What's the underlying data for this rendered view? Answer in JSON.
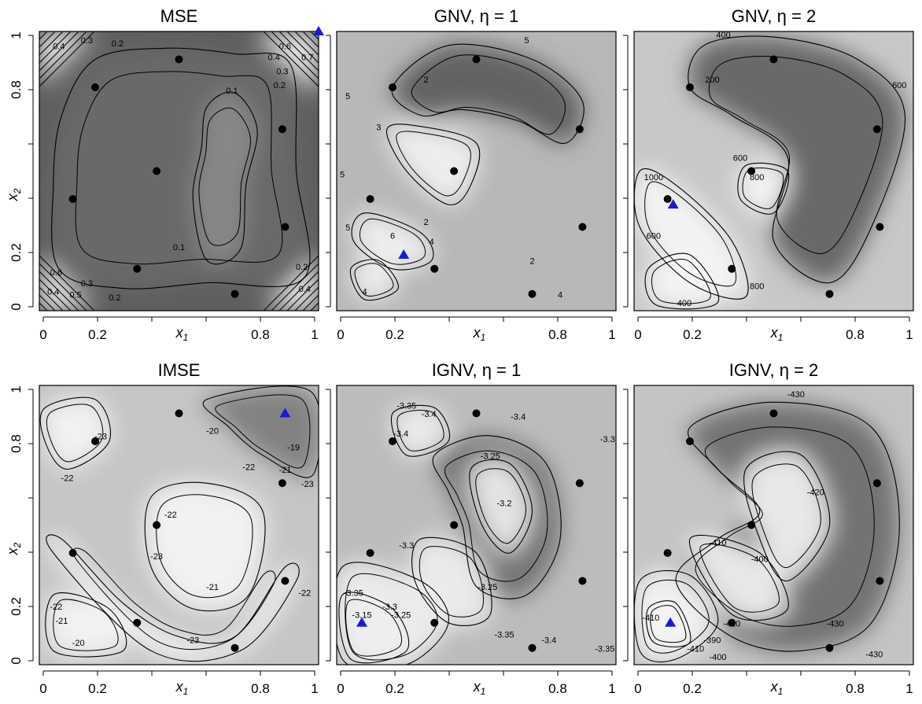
{
  "panel_order": [
    "MSE",
    "GNV, η = 1",
    "GNV, η = 2",
    "IMSE",
    "IGNV, η = 1",
    "IGNV, η = 2"
  ],
  "chart_data": [
    {
      "type": "heatmap",
      "title": "MSE",
      "xlabel": "x1",
      "ylabel": "x2",
      "xlim": [
        0,
        1
      ],
      "ylim": [
        0,
        1
      ],
      "xticks": [
        "0",
        "0.2",
        "0.8",
        "1"
      ],
      "yticks": [
        "0",
        "0.2",
        "0.8",
        "1"
      ],
      "contour_labels": [
        "0.4",
        "0.3",
        "0.2",
        "0.1",
        "0.6",
        "0.7",
        "0.4",
        "0.3",
        "0.2",
        "0.1",
        "0.4",
        "0.6",
        "0.5",
        "0.3",
        "0.2",
        "0.2",
        "0.4"
      ],
      "design_points": [
        [
          0.12,
          0.4
        ],
        [
          0.2,
          0.8
        ],
        [
          0.35,
          0.15
        ],
        [
          0.42,
          0.5
        ],
        [
          0.5,
          0.9
        ],
        [
          0.7,
          0.06
        ],
        [
          0.87,
          0.65
        ],
        [
          0.88,
          0.3
        ]
      ],
      "new_point": [
        1.0,
        1.0
      ]
    },
    {
      "type": "heatmap",
      "title": "GNV, η = 1",
      "xlabel": "x1",
      "ylabel": "x2",
      "xlim": [
        0,
        1
      ],
      "ylim": [
        0,
        1
      ],
      "xticks": [
        "0",
        "0.2",
        "0.8",
        "1"
      ],
      "yticks": [
        "0",
        "0.2",
        "0.8",
        "1"
      ],
      "contour_labels": [
        "5",
        "5",
        "2",
        "3",
        "5",
        "2",
        "5",
        "6",
        "4",
        "4",
        "2",
        "4"
      ],
      "design_points": [
        [
          0.12,
          0.4
        ],
        [
          0.2,
          0.8
        ],
        [
          0.35,
          0.15
        ],
        [
          0.42,
          0.5
        ],
        [
          0.5,
          0.9
        ],
        [
          0.7,
          0.06
        ],
        [
          0.87,
          0.65
        ],
        [
          0.88,
          0.3
        ]
      ],
      "new_point": [
        0.24,
        0.2
      ]
    },
    {
      "type": "heatmap",
      "title": "GNV, η = 2",
      "xlabel": "x1",
      "ylabel": "x2",
      "xlim": [
        0,
        1
      ],
      "ylim": [
        0,
        1
      ],
      "xticks": [
        "0",
        "0.2",
        "0.8",
        "1"
      ],
      "yticks": [
        "0",
        "0.2",
        "0.8",
        "1"
      ],
      "contour_labels": [
        "400",
        "200",
        "600",
        "600",
        "800",
        "1000",
        "600",
        "800",
        "400"
      ],
      "design_points": [
        [
          0.12,
          0.4
        ],
        [
          0.2,
          0.8
        ],
        [
          0.35,
          0.15
        ],
        [
          0.42,
          0.5
        ],
        [
          0.5,
          0.9
        ],
        [
          0.7,
          0.06
        ],
        [
          0.87,
          0.65
        ],
        [
          0.88,
          0.3
        ]
      ],
      "new_point": [
        0.14,
        0.38
      ]
    },
    {
      "type": "heatmap",
      "title": "IMSE",
      "xlabel": "x1",
      "ylabel": "x2",
      "xlim": [
        0,
        1
      ],
      "ylim": [
        0,
        1
      ],
      "xticks": [
        "0",
        "0.2",
        "0.8",
        "1"
      ],
      "yticks": [
        "0",
        "0.2",
        "0.8",
        "1"
      ],
      "contour_labels": [
        "-22",
        "-23",
        "-20",
        "-19",
        "-21",
        "-22",
        "-22",
        "-23",
        "-23",
        "-21",
        "-22",
        "-21",
        "-22",
        "-20",
        "-23"
      ],
      "design_points": [
        [
          0.12,
          0.4
        ],
        [
          0.2,
          0.8
        ],
        [
          0.35,
          0.15
        ],
        [
          0.42,
          0.5
        ],
        [
          0.5,
          0.9
        ],
        [
          0.7,
          0.06
        ],
        [
          0.87,
          0.65
        ],
        [
          0.88,
          0.3
        ]
      ],
      "new_point": [
        0.88,
        0.9
      ]
    },
    {
      "type": "heatmap",
      "title": "IGNV, η = 1",
      "xlabel": "x1",
      "ylabel": "x2",
      "xlim": [
        0,
        1
      ],
      "ylim": [
        0,
        1
      ],
      "xticks": [
        "0",
        "0.2",
        "0.8",
        "1"
      ],
      "yticks": [
        "0",
        "0.2",
        "0.8",
        "1"
      ],
      "contour_labels": [
        "-3.35",
        "-3.4",
        "-3.4",
        "-3.4",
        "-3.25",
        "-3.3",
        "-3.2",
        "-3.3",
        "-3.35",
        "-3.25",
        "-3.3",
        "-3.15",
        "-3.25",
        "-3.35",
        "-3.4",
        "-3.35"
      ],
      "design_points": [
        [
          0.12,
          0.4
        ],
        [
          0.2,
          0.8
        ],
        [
          0.35,
          0.15
        ],
        [
          0.42,
          0.5
        ],
        [
          0.5,
          0.9
        ],
        [
          0.7,
          0.06
        ],
        [
          0.87,
          0.65
        ],
        [
          0.88,
          0.3
        ]
      ],
      "new_point": [
        0.09,
        0.15
      ]
    },
    {
      "type": "heatmap",
      "title": "IGNV, η = 2",
      "xlabel": "x1",
      "ylabel": "x2",
      "xlim": [
        0,
        1
      ],
      "ylim": [
        0,
        1
      ],
      "xticks": [
        "0",
        "0.2",
        "0.8",
        "1"
      ],
      "yticks": [
        "0",
        "0.2",
        "0.8",
        "1"
      ],
      "contour_labels": [
        "-430",
        "-420",
        "-410",
        "-400",
        "-410",
        "-420",
        "-410",
        "-430",
        "-400",
        "-390",
        "-430"
      ],
      "design_points": [
        [
          0.12,
          0.4
        ],
        [
          0.2,
          0.8
        ],
        [
          0.35,
          0.15
        ],
        [
          0.42,
          0.5
        ],
        [
          0.5,
          0.9
        ],
        [
          0.7,
          0.06
        ],
        [
          0.87,
          0.65
        ],
        [
          0.88,
          0.3
        ]
      ],
      "new_point": [
        0.13,
        0.15
      ]
    }
  ]
}
